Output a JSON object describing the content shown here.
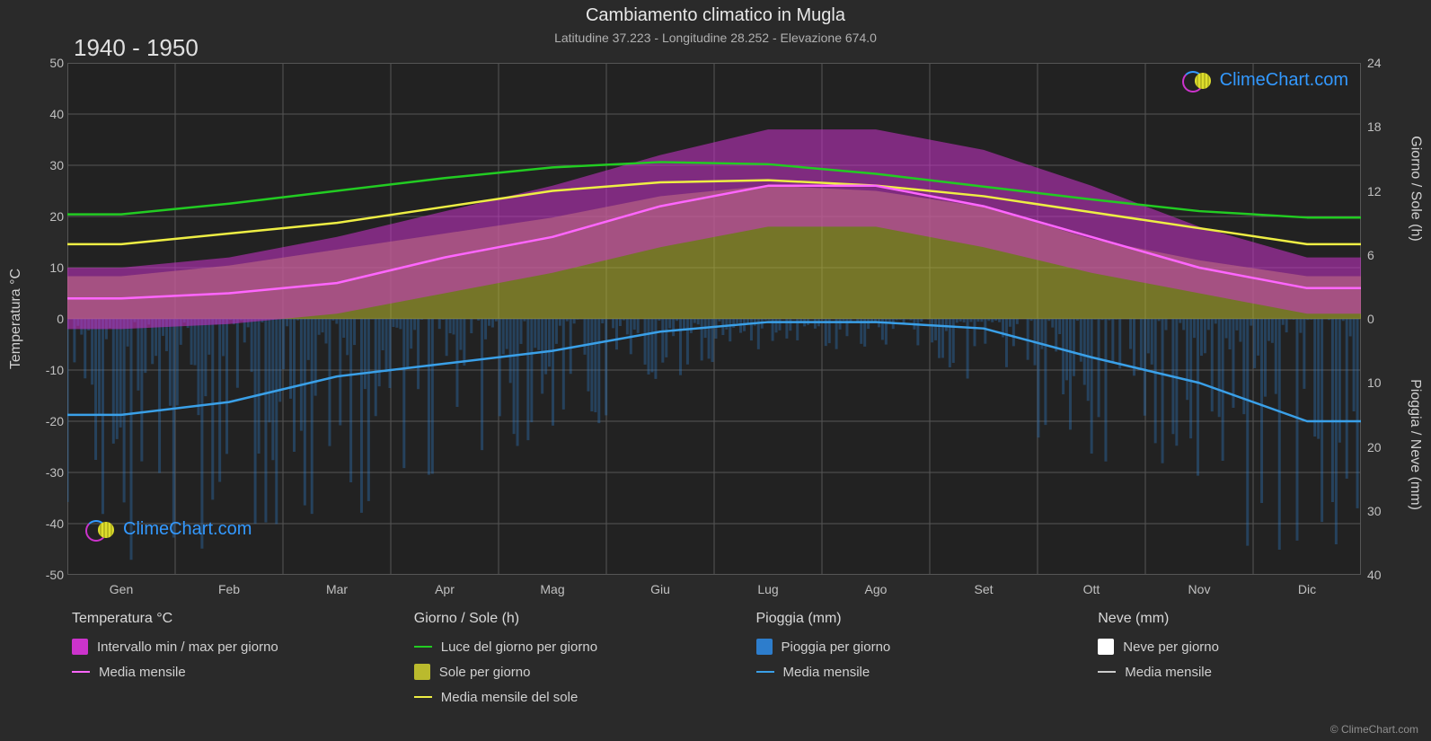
{
  "title": "Cambiamento climatico in Mugla",
  "subtitle": "Latitudine 37.223 - Longitudine 28.252 - Elevazione 674.0",
  "year_range": "1940 - 1950",
  "logo_text": "ClimeChart.com",
  "copyright": "© ClimeChart.com",
  "chart": {
    "background_color": "#222222",
    "grid_color": "#555555",
    "font_color": "#d0d0d0",
    "x_months": [
      "Gen",
      "Feb",
      "Mar",
      "Apr",
      "Mag",
      "Giu",
      "Lug",
      "Ago",
      "Set",
      "Ott",
      "Nov",
      "Dic"
    ],
    "y_left": {
      "label": "Temperatura °C",
      "min": -50,
      "max": 50,
      "step": 10,
      "ticks": [
        50,
        40,
        30,
        20,
        10,
        0,
        -10,
        -20,
        -30,
        -40,
        -50
      ]
    },
    "y_right_top": {
      "label": "Giorno / Sole (h)",
      "min": 0,
      "max": 24,
      "step": 6,
      "ticks": [
        24,
        18,
        12,
        6,
        0
      ]
    },
    "y_right_bottom": {
      "label": "Pioggia / Neve (mm)",
      "min": 0,
      "max": 40,
      "step": 10,
      "ticks": [
        0,
        10,
        20,
        30,
        40
      ]
    },
    "series": {
      "temp_range_fill": {
        "color": "#cc33cc",
        "opacity": 0.55,
        "monthly_min": [
          -2,
          -1,
          1,
          5,
          9,
          14,
          18,
          18,
          14,
          9,
          5,
          1
        ],
        "monthly_max": [
          10,
          12,
          16,
          21,
          26,
          32,
          37,
          37,
          33,
          26,
          18,
          12
        ]
      },
      "temp_mean_line": {
        "color": "#ff66ff",
        "width": 2.5,
        "monthly": [
          4,
          5,
          7,
          12,
          16,
          22,
          26,
          26,
          22,
          16,
          10,
          6
        ]
      },
      "daylight_line": {
        "color": "#22cc22",
        "width": 2.5,
        "monthly_hours": [
          9.8,
          10.8,
          12.0,
          13.2,
          14.2,
          14.7,
          14.5,
          13.6,
          12.4,
          11.2,
          10.1,
          9.5
        ]
      },
      "sun_fill": {
        "color": "#baba2d",
        "opacity": 0.55,
        "monthly_hours": [
          4.0,
          5.0,
          6.5,
          8.0,
          9.5,
          11.5,
          12.5,
          12.0,
          10.5,
          7.5,
          5.5,
          4.0
        ]
      },
      "sun_mean_line": {
        "color": "#eeee44",
        "width": 2.5,
        "monthly_hours": [
          7.0,
          8.0,
          9.0,
          10.5,
          12.0,
          12.8,
          13.0,
          12.5,
          11.5,
          10.0,
          8.5,
          7.0
        ]
      },
      "rain_daily_bars": {
        "color": "#2d7dcc",
        "opacity": 0.35,
        "monthly_max_mm": [
          40,
          40,
          32,
          25,
          20,
          10,
          5,
          5,
          10,
          25,
          38,
          40
        ]
      },
      "rain_mean_line": {
        "color": "#3aa0e8",
        "width": 2.5,
        "monthly_mm": [
          15,
          13,
          9,
          7,
          5,
          2,
          0.5,
          0.5,
          1.5,
          6,
          10,
          16
        ]
      },
      "snow_daily": {
        "color": "#ffffff",
        "monthly_mm": [
          0,
          0,
          0,
          0,
          0,
          0,
          0,
          0,
          0,
          0,
          0,
          0
        ]
      },
      "snow_mean_line": {
        "color": "#cccccc",
        "width": 2.5,
        "monthly_mm": [
          0,
          0,
          0,
          0,
          0,
          0,
          0,
          0,
          0,
          0,
          0,
          0
        ]
      }
    }
  },
  "legend": {
    "col1": {
      "heading": "Temperatura °C",
      "items": [
        {
          "type": "swatch",
          "color": "#cc33cc",
          "label": "Intervallo min / max per giorno"
        },
        {
          "type": "line",
          "color": "#ff66ff",
          "label": "Media mensile"
        }
      ]
    },
    "col2": {
      "heading": "Giorno / Sole (h)",
      "items": [
        {
          "type": "line",
          "color": "#22cc22",
          "label": "Luce del giorno per giorno"
        },
        {
          "type": "swatch",
          "color": "#baba2d",
          "label": "Sole per giorno"
        },
        {
          "type": "line",
          "color": "#eeee44",
          "label": "Media mensile del sole"
        }
      ]
    },
    "col3": {
      "heading": "Pioggia (mm)",
      "items": [
        {
          "type": "swatch",
          "color": "#2d7dcc",
          "label": "Pioggia per giorno"
        },
        {
          "type": "line",
          "color": "#3aa0e8",
          "label": "Media mensile"
        }
      ]
    },
    "col4": {
      "heading": "Neve (mm)",
      "items": [
        {
          "type": "swatch",
          "color": "#ffffff",
          "label": "Neve per giorno"
        },
        {
          "type": "line",
          "color": "#cccccc",
          "label": "Media mensile"
        }
      ]
    }
  }
}
